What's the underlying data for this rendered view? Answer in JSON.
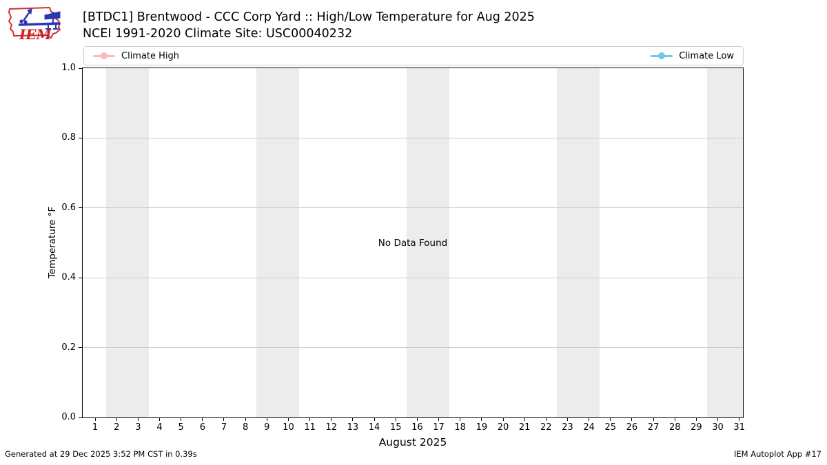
{
  "logo": {
    "text": "IEM"
  },
  "chart_data": {
    "type": "line",
    "title": "[BTDC1] Brentwood - CCC Corp Yard :: High/Low Temperature for Aug 2025",
    "subtitle": "NCEI 1991-2020 Climate Site: USC00040232",
    "xlabel": "August 2025",
    "ylabel": "Temperature °F",
    "xlim": [
      0.42,
      31.17
    ],
    "ylim": [
      0.0,
      1.0
    ],
    "x_ticks": [
      1,
      2,
      3,
      4,
      5,
      6,
      7,
      8,
      9,
      10,
      11,
      12,
      13,
      14,
      15,
      16,
      17,
      18,
      19,
      20,
      21,
      22,
      23,
      24,
      25,
      26,
      27,
      28,
      29,
      30,
      31
    ],
    "y_ticks": [
      "0.0",
      "0.2",
      "0.4",
      "0.6",
      "0.8",
      "1.0"
    ],
    "grid": true,
    "grid_color": "#cccccc",
    "weekend_band_color": "#ececec",
    "weekend_bands": [
      [
        1.5,
        3.5
      ],
      [
        8.5,
        10.5
      ],
      [
        15.5,
        17.5
      ],
      [
        22.5,
        24.5
      ],
      [
        29.5,
        31.5
      ]
    ],
    "series": [
      {
        "name": "Climate High",
        "color": "#ffb6c1",
        "values": []
      },
      {
        "name": "Climate Low",
        "color": "#74c6e6",
        "values": []
      }
    ],
    "no_data_message": "No Data Found",
    "legend_position": "top"
  },
  "footer": {
    "left": "Generated at 29 Dec 2025 3:52 PM CST in 0.39s",
    "right": "IEM Autoplot App #17"
  }
}
